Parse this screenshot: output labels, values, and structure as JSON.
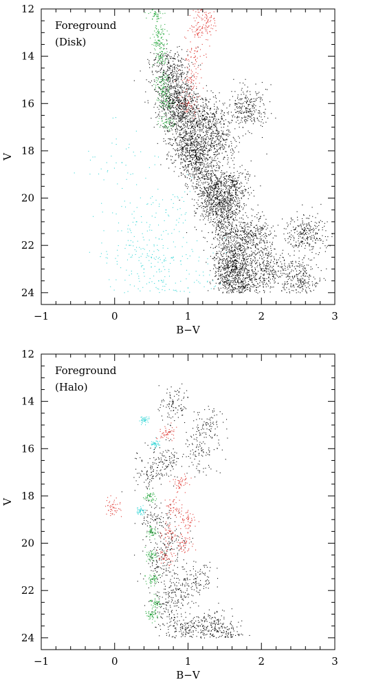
{
  "chart_data": [
    {
      "id": "disk",
      "type": "scatter",
      "panel_label": [
        "Foreground",
        "(Disk)"
      ],
      "xlabel": "B−V",
      "ylabel": "V",
      "xlim": [
        -1,
        3
      ],
      "ylim": [
        24.5,
        12
      ],
      "y_inverted": true,
      "x_ticks": [
        -1,
        0,
        1,
        2,
        3
      ],
      "x_tick_labels": [
        "−1",
        "0",
        "1",
        "2",
        "3"
      ],
      "y_ticks": [
        12,
        14,
        16,
        18,
        20,
        22,
        24
      ],
      "y_tick_labels": [
        "12",
        "14",
        "16",
        "18",
        "20",
        "22",
        "24"
      ],
      "grid": false,
      "legend": "none",
      "series": [
        {
          "color": "#000000",
          "description_of_distribution": "dense main sequence band",
          "points": [
            [
              0.75,
              14.5
            ],
            [
              0.85,
              15.5
            ],
            [
              0.9,
              16.5
            ],
            [
              1.0,
              17.5
            ],
            [
              1.15,
              18.5
            ],
            [
              1.3,
              19.5
            ],
            [
              1.45,
              20.5
            ],
            [
              1.55,
              21.5
            ],
            [
              1.62,
              22.5
            ],
            [
              1.68,
              23.5
            ],
            [
              1.7,
              24.0
            ],
            [
              0.8,
              16.0
            ],
            [
              1.05,
              18.0
            ],
            [
              1.4,
              20.0
            ],
            [
              1.6,
              23.0
            ],
            [
              1.2,
              16.5
            ],
            [
              1.4,
              17.5
            ],
            [
              1.6,
              19.5
            ],
            [
              1.9,
              21.5
            ],
            [
              2.1,
              23.0
            ],
            [
              2.5,
              23.5
            ],
            [
              2.6,
              21.5
            ],
            [
              1.8,
              16.2
            ]
          ],
          "spread": 0.14
        },
        {
          "color": "#22a83a",
          "description_of_distribution": "blue edge of main sequence",
          "points": [
            [
              0.55,
              12.2
            ],
            [
              0.6,
              13.0
            ],
            [
              0.62,
              14.0
            ],
            [
              0.65,
              15.0
            ],
            [
              0.68,
              16.0
            ],
            [
              0.7,
              16.8
            ],
            [
              0.62,
              13.5
            ],
            [
              0.66,
              15.5
            ]
          ],
          "spread": 0.05
        },
        {
          "color": "#e0332e",
          "description_of_distribution": "red sparse stars",
          "points": [
            [
              1.2,
              12.1
            ],
            [
              1.15,
              13.0
            ],
            [
              1.1,
              14.0
            ],
            [
              1.05,
              15.0
            ],
            [
              1.0,
              16.0
            ],
            [
              1.25,
              12.6
            ]
          ],
          "spread": 0.08
        },
        {
          "color": "#35d6d6",
          "description_of_distribution": "cyan white dwarf region",
          "points": [
            [
              0.2,
              22.0
            ],
            [
              0.4,
              23.0
            ],
            [
              0.6,
              23.5
            ],
            [
              0.8,
              22.5
            ],
            [
              0.3,
              21.0
            ],
            [
              0.5,
              22.5
            ],
            [
              1.0,
              23.8
            ],
            [
              0.1,
              18.5
            ],
            [
              0.7,
              20.5
            ]
          ],
          "spread": 0.25
        }
      ]
    },
    {
      "id": "halo",
      "type": "scatter",
      "panel_label": [
        "Foreground",
        "(Halo)"
      ],
      "xlabel": "B−V",
      "ylabel": "V",
      "xlim": [
        -1,
        3
      ],
      "ylim": [
        24.5,
        12
      ],
      "y_inverted": true,
      "x_ticks": [
        -1,
        0,
        1,
        2,
        3
      ],
      "x_tick_labels": [
        "−1",
        "0",
        "1",
        "2",
        "3"
      ],
      "y_ticks": [
        12,
        14,
        16,
        18,
        20,
        22,
        24
      ],
      "y_tick_labels": [
        "12",
        "14",
        "16",
        "18",
        "20",
        "22",
        "24"
      ],
      "grid": false,
      "legend": "none",
      "series": [
        {
          "color": "#000000",
          "description_of_distribution": "narrow halo main sequence with red spread",
          "points": [
            [
              0.5,
              17.0
            ],
            [
              0.55,
              19.0
            ],
            [
              0.6,
              21.0
            ],
            [
              0.7,
              22.5
            ],
            [
              0.8,
              23.5
            ],
            [
              1.0,
              23.8
            ],
            [
              1.2,
              23.5
            ],
            [
              1.4,
              23.7
            ],
            [
              0.9,
              22.0
            ],
            [
              1.1,
              21.5
            ],
            [
              0.75,
              20.0
            ],
            [
              1.55,
              23.8
            ],
            [
              0.8,
              14.0
            ],
            [
              1.25,
              15.0
            ],
            [
              1.15,
              16.2
            ],
            [
              0.7,
              16.5
            ]
          ],
          "spread": 0.12
        },
        {
          "color": "#22a83a",
          "description_of_distribution": "blue edge turnoff",
          "points": [
            [
              0.48,
              18.0
            ],
            [
              0.5,
              19.5
            ],
            [
              0.5,
              20.5
            ],
            [
              0.52,
              21.5
            ],
            [
              0.55,
              22.5
            ],
            [
              0.5,
              23.0
            ]
          ],
          "spread": 0.04
        },
        {
          "color": "#e0332e",
          "description_of_distribution": "red sparse stars",
          "points": [
            [
              0.7,
              15.3
            ],
            [
              0.8,
              18.5
            ],
            [
              0.75,
              19.5
            ],
            [
              0.7,
              20.5
            ],
            [
              0.9,
              17.5
            ],
            [
              1.0,
              19.0
            ],
            [
              -0.02,
              18.5
            ],
            [
              0.95,
              20.0
            ]
          ],
          "spread": 0.06
        },
        {
          "color": "#35d6d6",
          "description_of_distribution": "few cyan points",
          "points": [
            [
              0.4,
              14.8
            ],
            [
              0.55,
              15.8
            ],
            [
              0.35,
              18.6
            ]
          ],
          "spread": 0.03
        }
      ]
    }
  ]
}
